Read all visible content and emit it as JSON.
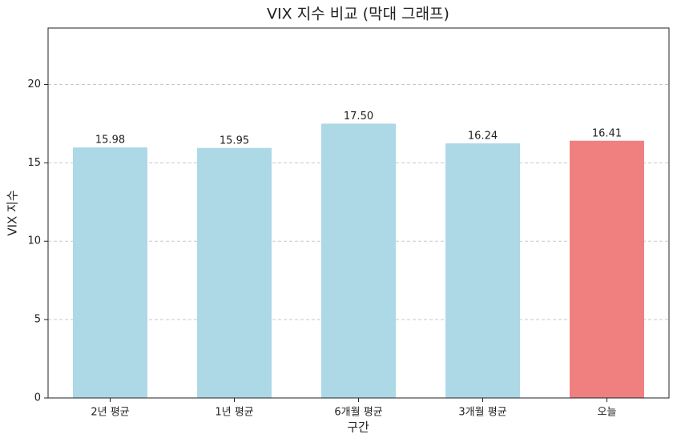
{
  "chart_data": {
    "type": "bar",
    "title": "VIX 지수 비교 (막대 그래프)",
    "x_label": "구간",
    "y_label": "VIX 지수",
    "categories": [
      "2년 평균",
      "1년 평균",
      "6개월 평균",
      "3개월 평균",
      "오늘"
    ],
    "values": [
      15.98,
      15.95,
      17.5,
      16.24,
      16.41
    ],
    "value_labels": [
      "15.98",
      "15.95",
      "17.50",
      "16.24",
      "16.41"
    ],
    "colors": [
      "#add8e6",
      "#add8e6",
      "#add8e6",
      "#add8e6",
      "#f08080"
    ],
    "ylim": [
      0,
      23.6
    ],
    "yticks": [
      0,
      5,
      10,
      15,
      20
    ],
    "grid": true
  }
}
